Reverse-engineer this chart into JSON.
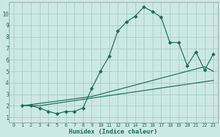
{
  "xlabel": "Humidex (Indice chaleur)",
  "bg_color": "#cce8e4",
  "line_color": "#1a6b5e",
  "grid_color": "#aacfca",
  "xlim": [
    -0.5,
    23.5
  ],
  "ylim": [
    0.5,
    11
  ],
  "xticks": [
    0,
    1,
    2,
    3,
    4,
    5,
    6,
    7,
    8,
    9,
    10,
    11,
    12,
    13,
    14,
    15,
    16,
    17,
    18,
    19,
    20,
    21,
    22,
    23
  ],
  "yticks": [
    1,
    2,
    3,
    4,
    5,
    6,
    7,
    8,
    9,
    10
  ],
  "line1_x": [
    1,
    2,
    3,
    4,
    5,
    6,
    7,
    8,
    9,
    10,
    11,
    12,
    13,
    14,
    15,
    16,
    17,
    18,
    19,
    20,
    21,
    22,
    23
  ],
  "line1_y": [
    2.0,
    2.0,
    1.8,
    1.5,
    1.3,
    1.5,
    1.5,
    1.8,
    3.5,
    5.0,
    6.3,
    8.5,
    9.3,
    9.8,
    10.6,
    10.2,
    9.7,
    7.5,
    7.5,
    5.5,
    6.7,
    5.1,
    6.5
  ],
  "line2_x": [
    1,
    2,
    3,
    4,
    5,
    6,
    7,
    8,
    9,
    10,
    11,
    12,
    13,
    14,
    15,
    16,
    17,
    18,
    19,
    20,
    21,
    22,
    23
  ],
  "line2_y": [
    2.0,
    2.1,
    2.2,
    2.3,
    2.4,
    2.5,
    2.6,
    2.7,
    2.8,
    3.0,
    3.2,
    3.4,
    3.6,
    3.8,
    4.0,
    4.2,
    4.4,
    4.6,
    4.8,
    5.0,
    5.2,
    5.4,
    5.0
  ],
  "line3_x": [
    1,
    2,
    3,
    23
  ],
  "line3_y": [
    2.0,
    2.0,
    2.0,
    4.2
  ],
  "marker": "D",
  "markersize": 2.5
}
